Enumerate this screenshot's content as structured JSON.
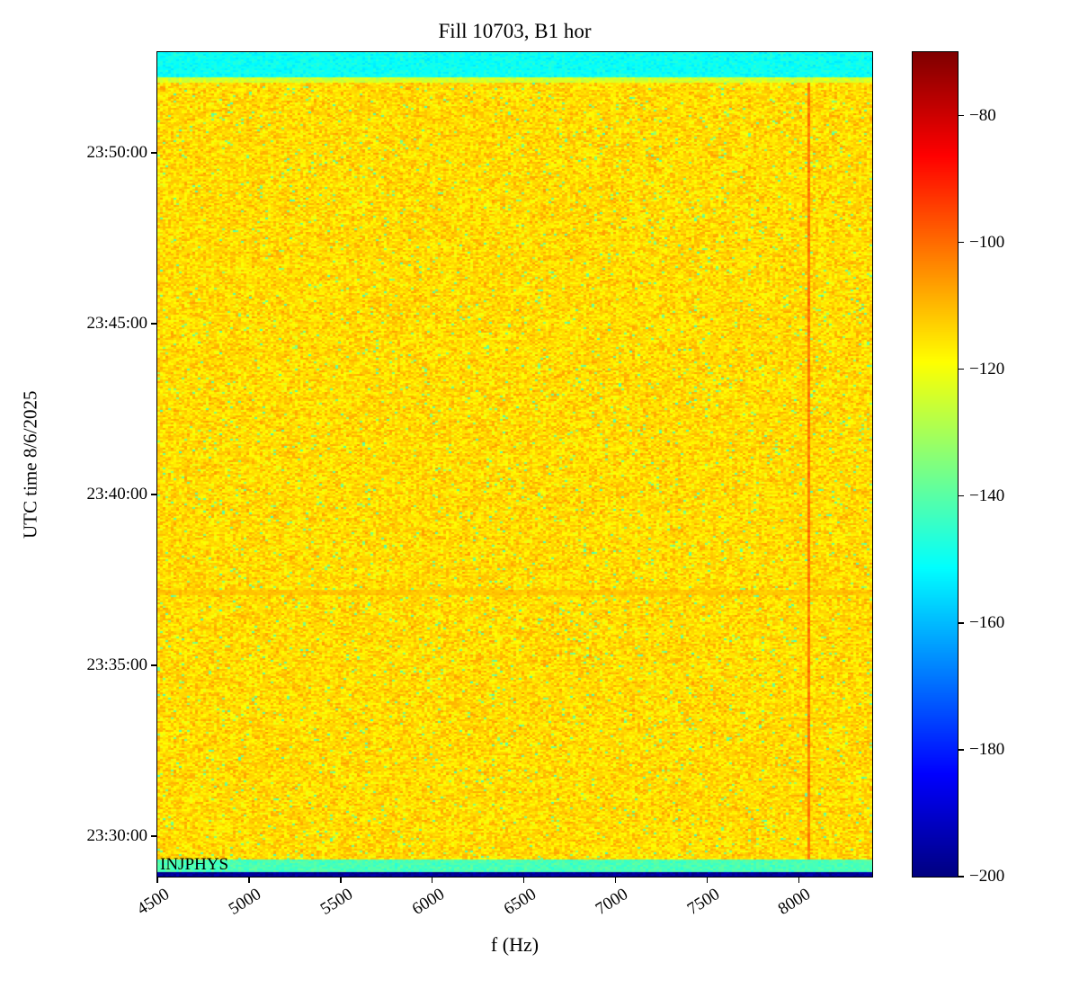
{
  "title": "Fill 10703, B1 hor",
  "corner_label": "INJPHYS",
  "axes": {
    "xlabel": "f (Hz)",
    "ylabel": "UTC time 8/6/2025",
    "x_tick_labels": [
      "4500",
      "5000",
      "5500",
      "6000",
      "6500",
      "7000",
      "7500",
      "8000"
    ],
    "y_tick_labels": [
      "23:50:00",
      "23:45:00",
      "23:40:00",
      "23:35:00",
      "23:30:00"
    ],
    "colorbar_tick_labels": [
      "−80",
      "−100",
      "−120",
      "−140",
      "−160",
      "−180",
      "−200"
    ]
  },
  "chart_data": {
    "type": "heatmap",
    "title": "Fill 10703, B1 hor",
    "xlabel": "f (Hz)",
    "ylabel": "UTC time 8/6/2025",
    "date": "8/6/2025",
    "colormap": "jet",
    "x_range_hz": [
      4500,
      8400
    ],
    "x_ticks_hz": [
      4500,
      5000,
      5500,
      6000,
      6500,
      7000,
      7500,
      8000
    ],
    "y_time_range": [
      "23:28:49",
      "23:52:57"
    ],
    "y_ticks_time": [
      "23:30:00",
      "23:35:00",
      "23:40:00",
      "23:45:00",
      "23:50:00"
    ],
    "colorbar_range_db": [
      -200,
      -70
    ],
    "colorbar_ticks_db": [
      -80,
      -100,
      -120,
      -140,
      -160,
      -180,
      -200
    ],
    "background": {
      "mean_db": -114.5,
      "noise_db": 5.5,
      "green_speck_prob": 0.025,
      "green_speck_db": -137,
      "orange_speck_prob": 0.05,
      "orange_speck_db": -108
    },
    "features": [
      {
        "name": "top-cyan-band",
        "kind": "horizontal-band",
        "time_span": [
          "23:52:14",
          "23:52:57"
        ],
        "level_db": -150
      },
      {
        "name": "top-transition-rows",
        "kind": "horizontal-band",
        "time_span": [
          "23:52:03",
          "23:52:14"
        ],
        "level_db": -124
      },
      {
        "name": "bottom-green-band",
        "kind": "horizontal-band",
        "time_span": [
          "23:28:57",
          "23:29:19"
        ],
        "level_db": -142
      },
      {
        "name": "bottom-dark-edge",
        "kind": "horizontal-band",
        "time_span": [
          "23:28:49",
          "23:28:57"
        ],
        "level_db": -197
      },
      {
        "name": "vertical-tone-line",
        "kind": "vertical-line",
        "freq_hz": 8060,
        "level_db": -102
      },
      {
        "name": "faint-warm-row",
        "kind": "horizontal-line",
        "time": "23:37:08",
        "level_db": -112
      }
    ],
    "annotations": [
      {
        "text": "INJPHYS",
        "position": "bottom-left"
      }
    ]
  }
}
